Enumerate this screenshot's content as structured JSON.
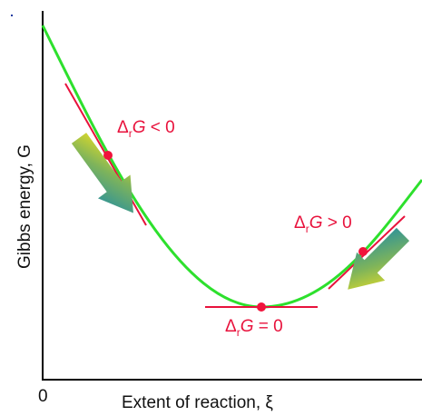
{
  "axes": {
    "y_label": "Gibbs energy, G",
    "x_label": "Extent of reaction, ξ",
    "origin_label": "0"
  },
  "annotations": {
    "left": {
      "delta": "Δ",
      "sub": "r",
      "var": "G",
      "rel": " < 0"
    },
    "right": {
      "delta": "Δ",
      "sub": "r",
      "var": "G",
      "rel": " > 0"
    },
    "min": {
      "delta": "Δ",
      "sub": "r",
      "var": "G",
      "rel": " = 0"
    }
  },
  "colors": {
    "curve": "#2de02d",
    "tangent": "#e8123c",
    "point": "#f0143c",
    "label": "#e8123c",
    "axis": "#000000",
    "arrow_start": "#f2e21e",
    "arrow_end": "#1a8aa8"
  }
}
